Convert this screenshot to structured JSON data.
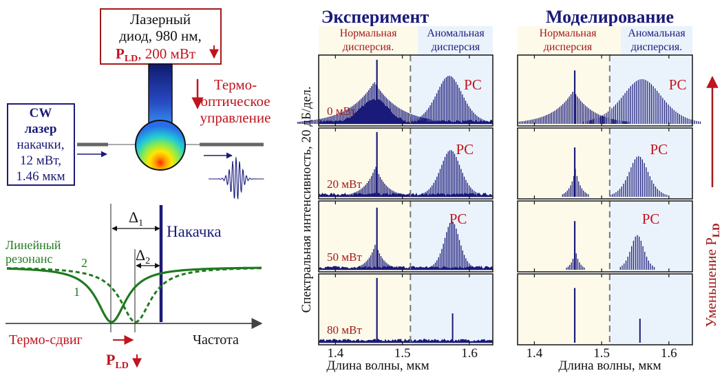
{
  "laser_diode": {
    "line1": "Лазерный",
    "line2": "диод, 980 нм,",
    "power_symbol": "P",
    "power_sub": "LD",
    "power_value": ", 200 мВт"
  },
  "thermo_control": {
    "line1": "Термо-",
    "line2": "оптическое",
    "line3": "управление"
  },
  "cw_laser": {
    "line1": "CW",
    "line2": "лазер",
    "line3": "накачки,",
    "line4": "12 мВт,",
    "line5": "1.46 мкм"
  },
  "resonance": {
    "delta1": "Δ",
    "delta1_sub": "1",
    "delta2": "Δ",
    "delta2_sub": "2",
    "pump_label": "Накачка",
    "linear_label_1": "Линейный",
    "linear_label_2": "резонанс",
    "curve1_label": "1",
    "curve2_label": "2",
    "thermo_shift": "Термо-сдвиг",
    "frequency": "Частота",
    "pld_symbol": "P",
    "pld_sub": "LD"
  },
  "experiment": {
    "title": "Эксперимент",
    "normal": [
      "Нормальная",
      "дисперсия."
    ],
    "anomalous": [
      "Аномальная",
      "дисперсия"
    ]
  },
  "simulation": {
    "title": "Моделирование",
    "normal": [
      "Нормальная",
      "дисперсия"
    ],
    "anomalous": [
      "Аномальная",
      "дисперсия."
    ]
  },
  "y_axis_label": "Спектральная интенсивность, 20 дБ/дел.",
  "right_axis_label": "Уменьшение P",
  "right_axis_sub": "LD",
  "x_axis_label": "Длина волны, мкм",
  "x_ticks": [
    "1.4",
    "1.5",
    "1.6"
  ],
  "rows": [
    {
      "power": "0 мВт",
      "soliton": "PC"
    },
    {
      "power": "20 мВт",
      "soliton": "PC"
    },
    {
      "power": "50 мВт",
      "soliton": "PC"
    },
    {
      "power": "80 мВт",
      "soliton": ""
    }
  ],
  "colors": {
    "navy": "#1a1a7a",
    "red": "#c0141e",
    "green": "#1f7a1f",
    "normal_bg": "#fdfaea",
    "anomalous_bg": "#eaf3fb"
  },
  "spectra": {
    "exp": [
      {
        "pump": 1.462,
        "pump_h": 0.96,
        "normal_center": 1.458,
        "normal_h": 0.63,
        "normal_w": 0.038,
        "sol_center": 1.57,
        "sol_h": 0.72,
        "sol_w": 0.035
      },
      {
        "pump": 1.462,
        "pump_h": 0.97,
        "normal_center": 1.46,
        "normal_h": 0.46,
        "normal_w": 0.016,
        "sol_center": 1.572,
        "sol_h": 0.7,
        "sol_w": 0.027
      },
      {
        "pump": 1.462,
        "pump_h": 0.93,
        "normal_center": 1.46,
        "normal_h": 0.4,
        "normal_w": 0.012,
        "sol_center": 1.574,
        "sol_h": 0.73,
        "sol_w": 0.02
      },
      {
        "pump": 1.462,
        "pump_h": 0.97,
        "normal_center": 0,
        "normal_h": 0,
        "normal_w": 0,
        "sol_center": 1.575,
        "sol_h": 0.44,
        "sol_w": 0
      }
    ],
    "sim": [
      {
        "pump": 1.46,
        "pump_h": 0.8,
        "normal_center": 1.458,
        "normal_h": 0.5,
        "normal_w": 0.03,
        "sol_center": 1.56,
        "sol_h": 0.67,
        "sol_w": 0.052
      },
      {
        "pump": 1.46,
        "pump_h": 0.74,
        "normal_center": 1.461,
        "normal_h": 0.42,
        "normal_w": 0.008,
        "sol_center": 1.555,
        "sol_h": 0.61,
        "sol_w": 0.025
      },
      {
        "pump": 1.46,
        "pump_h": 0.73,
        "normal_center": 1.461,
        "normal_h": 0.3,
        "normal_w": 0.006,
        "sol_center": 1.553,
        "sol_h": 0.52,
        "sol_w": 0.017
      },
      {
        "pump": 1.46,
        "pump_h": 0.82,
        "normal_center": 0,
        "normal_h": 0,
        "normal_w": 0,
        "sol_center": 1.557,
        "sol_h": 0.36,
        "sol_w": 0
      }
    ]
  }
}
